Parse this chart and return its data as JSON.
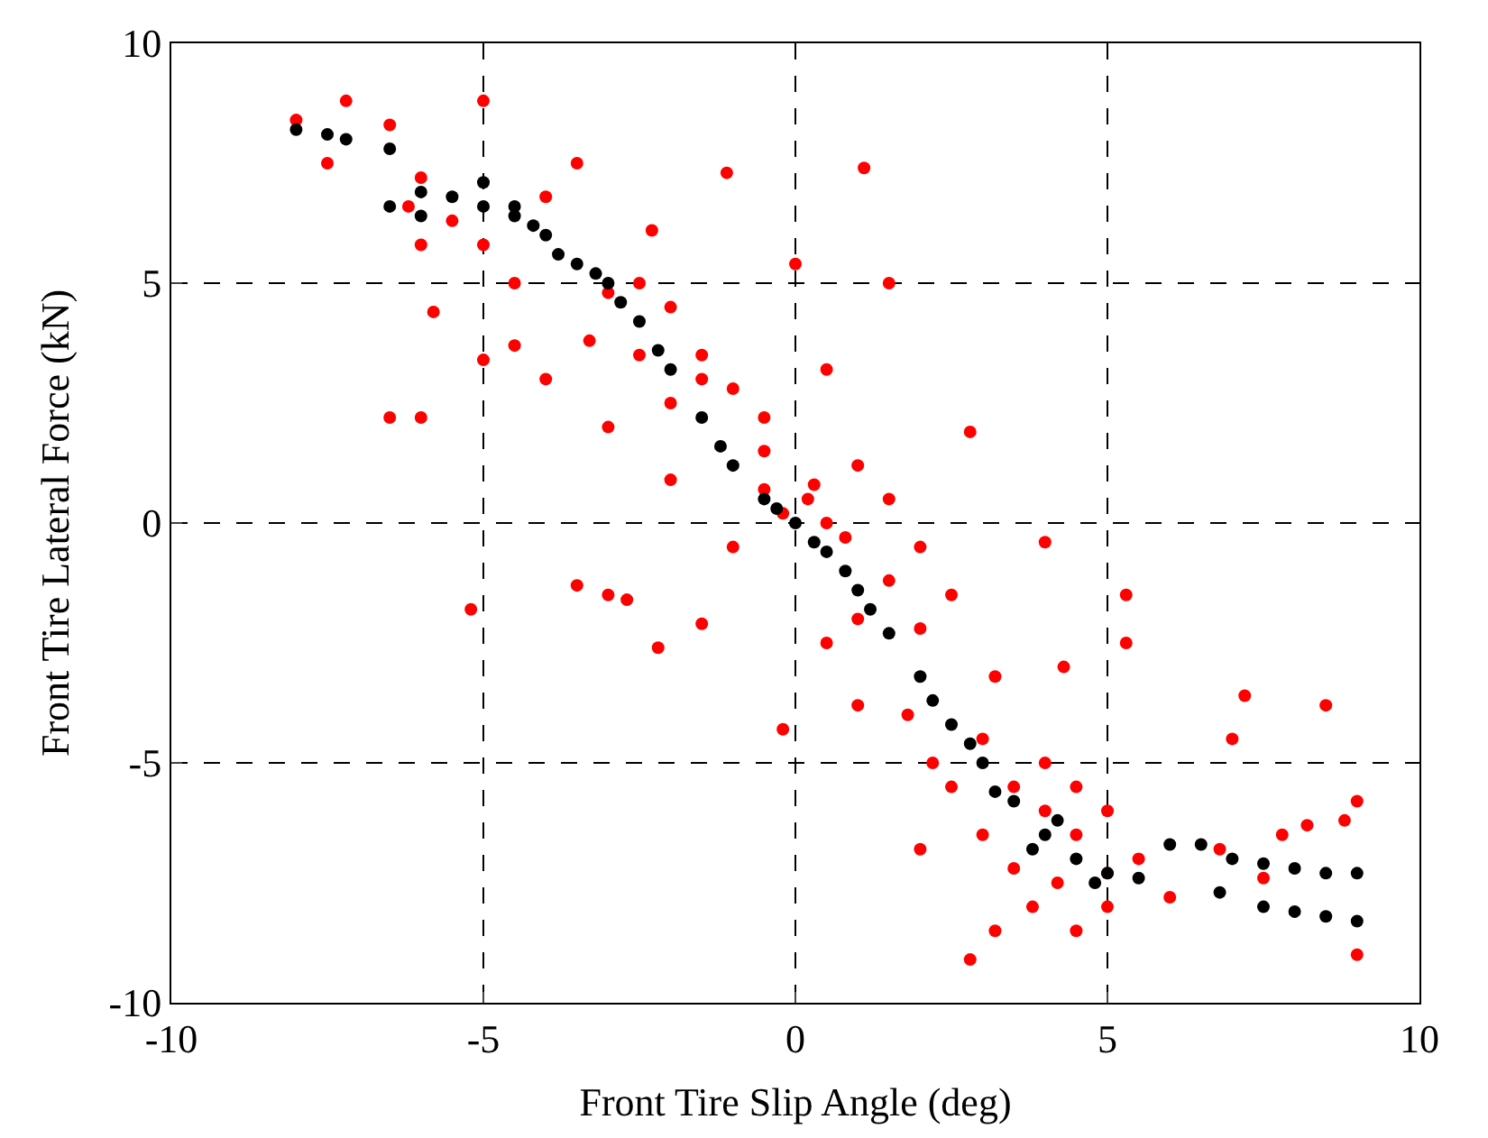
{
  "chart_data": {
    "type": "scatter",
    "xlabel": "Front Tire Slip Angle (deg)",
    "ylabel": "Front Tire Lateral Force (kN)",
    "xlim": [
      -10,
      10
    ],
    "xticks": [
      -10,
      -5,
      0,
      5,
      10
    ],
    "ylim": [
      -10,
      10
    ],
    "yticks": [
      -10,
      -5,
      0,
      5,
      10
    ],
    "grid": true,
    "legend": false,
    "marker": "circle",
    "series": [
      {
        "color": "#ff0000",
        "x": [
          -6.5,
          -6,
          -5.2,
          -5,
          -3.5,
          -2.3,
          -1.1,
          1.1,
          1.5,
          0,
          -3.5,
          -3,
          -2.7,
          -2.2,
          -1.5,
          -0.2,
          2,
          2.8,
          5.3,
          5.3,
          4,
          2.8,
          3.2,
          4.3,
          7.2,
          8.5,
          7,
          9,
          9,
          -7.5,
          -7.2,
          -6.5,
          -8,
          -6,
          -5.8,
          -4.5,
          -5,
          -4,
          -4.5,
          -3,
          -2,
          -1,
          -0.5,
          0.5,
          1,
          1.5,
          1.5,
          2,
          2.5,
          0.5,
          1,
          1.8,
          0.2,
          0.3,
          -0.2,
          0.5,
          0.8,
          -0.5,
          3,
          3.5,
          4,
          4.2,
          3.8,
          4.5,
          3.2,
          5,
          4,
          4.5,
          3,
          2.5,
          6.8,
          6,
          7.8,
          8.2,
          8.8,
          7.5,
          5,
          5.5,
          -4,
          -5,
          -3,
          -2.5,
          -2,
          -1.5,
          -2,
          -1,
          -3.3,
          -2.5,
          2,
          1,
          -0.5,
          -1.5,
          2.2,
          3.5,
          4.5,
          5,
          -5.5,
          -6.2,
          -6
        ],
        "values": [
          2.2,
          2.2,
          -1.8,
          8.8,
          7.5,
          6.1,
          7.3,
          7.4,
          5.0,
          5.4,
          -1.3,
          -1.5,
          -1.6,
          -2.6,
          -2.1,
          -4.3,
          -6.8,
          -9.1,
          -1.5,
          -2.5,
          -0.4,
          1.9,
          -3.2,
          -3.0,
          -3.6,
          -3.8,
          -4.5,
          -5.8,
          -9.0,
          7.5,
          8.8,
          8.3,
          8.4,
          5.8,
          4.4,
          3.7,
          3.4,
          3.0,
          5.0,
          2.0,
          0.9,
          -0.5,
          2.2,
          3.2,
          1.2,
          0.5,
          -1.2,
          -0.5,
          -1.5,
          -2.5,
          -3.8,
          -4.0,
          0.5,
          0.8,
          0.2,
          0.0,
          -0.3,
          0.7,
          -4.5,
          -5.5,
          -6.0,
          -7.5,
          -8.0,
          -8.5,
          -8.5,
          -8.0,
          -5.0,
          -5.5,
          -6.5,
          -5.5,
          -6.8,
          -7.8,
          -6.5,
          -6.3,
          -6.2,
          -7.4,
          -6.0,
          -7.0,
          6.8,
          5.8,
          4.8,
          5.0,
          4.5,
          3.0,
          2.5,
          2.8,
          3.8,
          3.5,
          -2.2,
          -2.0,
          1.5,
          3.5,
          -5.0,
          -7.2,
          -6.5,
          -7.3,
          6.3,
          6.6,
          7.2
        ]
      },
      {
        "color": "#000000",
        "x": [
          -8,
          -7.5,
          -7.2,
          -6.5,
          -6.5,
          -6,
          -5.5,
          -5,
          -4.5,
          -4,
          -3.5,
          -3,
          -2.5,
          -2,
          -1.5,
          -1,
          -0.5,
          0,
          0.5,
          1,
          1.5,
          2,
          2.5,
          3,
          3.5,
          4,
          4.5,
          5,
          5.5,
          6,
          6.5,
          7,
          7.5,
          8,
          8.5,
          9,
          6.8,
          7.5,
          8,
          8.5,
          9,
          -6,
          -5,
          -4.5,
          -4.2,
          3.8,
          4.2,
          4.8,
          3.2,
          -1.2,
          -2.2,
          -0.3,
          0.3,
          0.8,
          1.2,
          2.2,
          2.8,
          -2.8,
          -3.2,
          -3.8
        ],
        "values": [
          8.2,
          8.1,
          8.0,
          7.8,
          6.6,
          6.9,
          6.8,
          6.6,
          6.4,
          6.0,
          5.4,
          5.0,
          4.2,
          3.2,
          2.2,
          1.2,
          0.5,
          0,
          -0.6,
          -1.4,
          -2.3,
          -3.2,
          -4.2,
          -5.0,
          -5.8,
          -6.5,
          -7.0,
          -7.3,
          -7.4,
          -6.7,
          -6.7,
          -7.0,
          -7.1,
          -7.2,
          -7.3,
          -7.3,
          -7.7,
          -8.0,
          -8.1,
          -8.2,
          -8.3,
          6.4,
          7.1,
          6.6,
          6.2,
          -6.8,
          -6.2,
          -7.5,
          -5.6,
          1.6,
          3.6,
          0.3,
          -0.4,
          -1.0,
          -1.8,
          -3.7,
          -4.6,
          4.6,
          5.2,
          5.6
        ]
      }
    ]
  }
}
